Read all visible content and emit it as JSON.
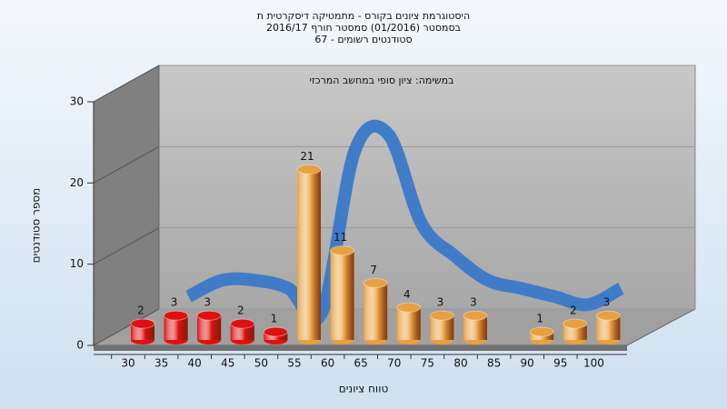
{
  "chart_data": {
    "type": "bar",
    "title": [
      "היסטוגרמת ציונים בקורס - מתמטיקה דיסקרטית ת",
      "בסמסטר  (01/2016)  סמסטר חורף 2016/17",
      "סטודנטים רשומים - 67"
    ],
    "annotation": "במשימה: ציון סופי במחשב המרכזי",
    "x_label": "טווח ציונים",
    "y_label": "מספר סטודנטים",
    "categories": [
      "30",
      "35",
      "40",
      "45",
      "50",
      "55",
      "60",
      "65",
      "70",
      "75",
      "80",
      "85",
      "90",
      "95",
      "100"
    ],
    "values": [
      2,
      3,
      3,
      2,
      1,
      21,
      11,
      7,
      4,
      3,
      3,
      null,
      1,
      2,
      3
    ],
    "colors": [
      "#e01010",
      "#e01010",
      "#e01010",
      "#e01010",
      "#e01010",
      "#e8a040",
      "#e8a040",
      "#e8a040",
      "#e8a040",
      "#e8a040",
      "#e8a040",
      "#e8a040",
      "#e8a040",
      "#e8a040",
      "#e8a040"
    ],
    "curve": {
      "color": "#3a78c8",
      "values": [
        null,
        4,
        6,
        6,
        5,
        2,
        22,
        24,
        13,
        9,
        6,
        5,
        4,
        3,
        5
      ]
    },
    "ylim": [
      0,
      30
    ],
    "yticks": [
      0,
      10,
      20,
      30
    ]
  }
}
